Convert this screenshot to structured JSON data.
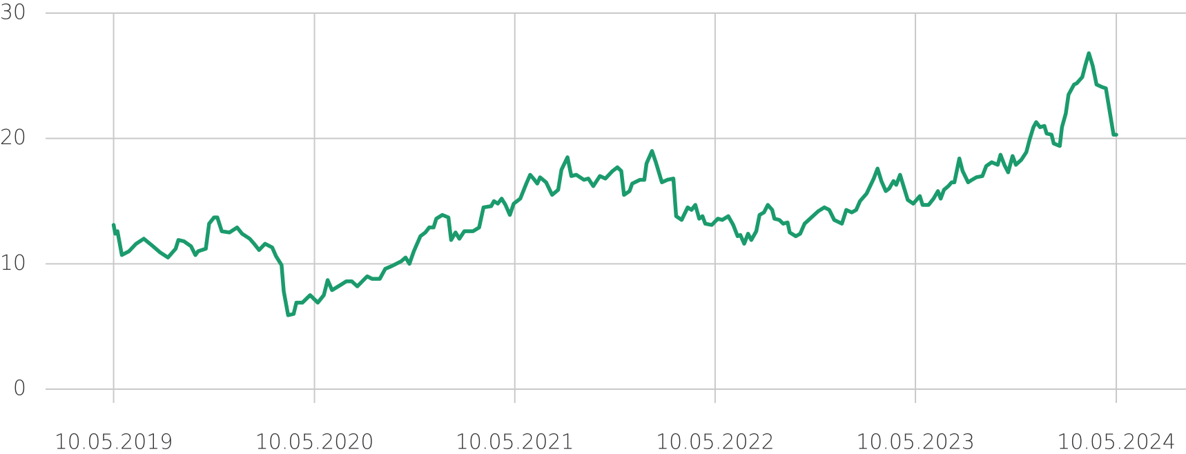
{
  "chart_data": {
    "type": "line",
    "x": [
      "2019-05-10",
      "2019-05-13",
      "2019-05-17",
      "2019-05-25",
      "2019-06-07",
      "2019-06-20",
      "2019-07-04",
      "2019-07-18",
      "2019-08-03",
      "2019-08-17",
      "2019-08-31",
      "2019-09-05",
      "2019-09-15",
      "2019-09-28",
      "2019-10-06",
      "2019-10-11",
      "2019-10-25",
      "2019-10-31",
      "2019-11-09",
      "2019-11-15",
      "2019-11-23",
      "2019-12-07",
      "2019-12-21",
      "2019-12-30",
      "2020-01-13",
      "2020-01-21",
      "2020-01-30",
      "2020-02-10",
      "2020-02-23",
      "2020-03-01",
      "2020-03-11",
      "2020-03-15",
      "2020-03-23",
      "2020-04-02",
      "2020-04-07",
      "2020-04-18",
      "2020-05-02",
      "2020-05-16",
      "2020-05-27",
      "2020-06-03",
      "2020-06-11",
      "2020-06-26",
      "2020-07-07",
      "2020-07-17",
      "2020-07-27",
      "2020-08-14",
      "2020-08-23",
      "2020-09-06",
      "2020-09-16",
      "2020-09-27",
      "2020-10-15",
      "2020-10-23",
      "2020-10-30",
      "2020-11-07",
      "2020-11-19",
      "2020-11-28",
      "2020-12-05",
      "2020-12-13",
      "2020-12-18",
      "2020-12-29",
      "2021-01-09",
      "2021-01-14",
      "2021-01-22",
      "2021-01-29",
      "2021-02-07",
      "2021-02-23",
      "2021-03-06",
      "2021-03-14",
      "2021-03-28",
      "2021-04-02",
      "2021-04-09",
      "2021-04-16",
      "2021-04-23",
      "2021-05-01",
      "2021-05-08",
      "2021-05-20",
      "2021-05-31",
      "2021-06-07",
      "2021-06-13",
      "2021-06-20",
      "2021-06-25",
      "2021-07-06",
      "2021-07-17",
      "2021-07-28",
      "2021-08-03",
      "2021-08-14",
      "2021-08-21",
      "2021-08-30",
      "2021-09-13",
      "2021-09-21",
      "2021-09-30",
      "2021-10-12",
      "2021-10-22",
      "2021-11-04",
      "2021-11-13",
      "2021-11-20",
      "2021-11-25",
      "2021-12-05",
      "2021-12-10",
      "2021-12-24",
      "2022-01-01",
      "2022-01-05",
      "2022-01-15",
      "2022-01-22",
      "2022-02-02",
      "2022-02-12",
      "2022-02-23",
      "2022-02-28",
      "2022-03-10",
      "2022-03-21",
      "2022-03-28",
      "2022-04-04",
      "2022-04-11",
      "2022-04-17",
      "2022-04-22",
      "2022-05-04",
      "2022-05-15",
      "2022-05-23",
      "2022-06-03",
      "2022-06-12",
      "2022-06-20",
      "2022-06-25",
      "2022-07-02",
      "2022-07-09",
      "2022-07-15",
      "2022-07-24",
      "2022-07-30",
      "2022-08-07",
      "2022-08-14",
      "2022-08-22",
      "2022-08-26",
      "2022-09-04",
      "2022-09-11",
      "2022-09-19",
      "2022-09-23",
      "2022-10-04",
      "2022-10-12",
      "2022-10-20",
      "2022-10-30",
      "2022-11-14",
      "2022-11-25",
      "2022-12-04",
      "2022-12-13",
      "2022-12-27",
      "2023-01-04",
      "2023-01-14",
      "2023-01-22",
      "2023-01-29",
      "2023-02-10",
      "2023-02-23",
      "2023-03-02",
      "2023-03-09",
      "2023-03-17",
      "2023-03-23",
      "2023-03-31",
      "2023-04-05",
      "2023-04-12",
      "2023-04-19",
      "2023-04-26",
      "2023-05-06",
      "2023-05-18",
      "2023-05-23",
      "2023-06-03",
      "2023-06-12",
      "2023-06-20",
      "2023-06-25",
      "2023-07-01",
      "2023-07-09",
      "2023-07-15",
      "2023-07-20",
      "2023-07-29",
      "2023-08-04",
      "2023-08-14",
      "2023-08-21",
      "2023-08-29",
      "2023-09-09",
      "2023-09-16",
      "2023-09-26",
      "2023-10-07",
      "2023-10-12",
      "2023-10-19",
      "2023-10-26",
      "2023-11-03",
      "2023-11-09",
      "2023-11-19",
      "2023-11-28",
      "2023-12-04",
      "2023-12-11",
      "2023-12-16",
      "2023-12-23",
      "2023-12-31",
      "2024-01-04",
      "2024-01-13",
      "2024-01-17",
      "2024-01-28",
      "2024-02-01",
      "2024-02-08",
      "2024-02-13",
      "2024-02-23",
      "2024-02-28",
      "2024-03-09",
      "2024-03-15",
      "2024-03-21",
      "2024-03-28",
      "2024-04-04",
      "2024-04-14",
      "2024-04-21",
      "2024-05-05",
      "2024-05-10"
    ],
    "series": [
      {
        "color": "#1b9b6d",
        "values": [
          13.1,
          12.4,
          12.6,
          10.7,
          11.0,
          11.6,
          12.0,
          11.5,
          10.9,
          10.5,
          11.2,
          11.9,
          11.8,
          11.4,
          10.7,
          11.0,
          11.2,
          13.2,
          13.7,
          13.7,
          12.6,
          12.5,
          12.9,
          12.4,
          12.0,
          11.6,
          11.1,
          11.6,
          11.3,
          10.6,
          9.9,
          7.8,
          5.9,
          6.0,
          6.9,
          6.9,
          7.5,
          6.9,
          7.5,
          8.7,
          7.9,
          8.3,
          8.6,
          8.6,
          8.2,
          9.0,
          8.8,
          8.8,
          9.6,
          9.8,
          10.2,
          10.5,
          10.0,
          11.0,
          12.2,
          12.5,
          12.9,
          12.9,
          13.6,
          13.9,
          13.7,
          11.9,
          12.5,
          12.0,
          12.6,
          12.6,
          12.9,
          14.5,
          14.6,
          15.0,
          14.8,
          15.2,
          14.7,
          13.9,
          14.8,
          15.2,
          16.4,
          17.1,
          16.8,
          16.4,
          16.9,
          16.5,
          15.5,
          15.9,
          17.5,
          18.5,
          17.0,
          17.1,
          16.7,
          16.8,
          16.2,
          17.0,
          16.8,
          17.4,
          17.7,
          17.4,
          15.5,
          15.8,
          16.4,
          16.7,
          16.7,
          18.0,
          19.0,
          18.1,
          16.5,
          16.7,
          16.8,
          13.8,
          13.5,
          14.5,
          14.3,
          14.7,
          13.6,
          13.8,
          13.2,
          13.1,
          13.6,
          13.5,
          13.8,
          13.1,
          12.2,
          12.3,
          11.6,
          12.4,
          11.9,
          12.6,
          13.9,
          14.1,
          14.7,
          14.3,
          13.6,
          13.5,
          13.2,
          13.3,
          12.5,
          12.2,
          12.4,
          13.2,
          13.6,
          14.2,
          14.5,
          14.3,
          13.5,
          13.2,
          14.3,
          14.1,
          14.3,
          15.0,
          15.6,
          16.8,
          17.6,
          16.6,
          15.8,
          16.0,
          16.6,
          16.3,
          17.1,
          16.1,
          15.1,
          14.8,
          15.4,
          14.7,
          14.7,
          15.2,
          15.8,
          15.2,
          15.9,
          16.2,
          16.5,
          16.5,
          18.4,
          17.4,
          16.5,
          16.7,
          16.9,
          17.0,
          17.8,
          18.1,
          17.9,
          18.7,
          17.9,
          17.3,
          18.6,
          17.9,
          18.3,
          18.9,
          19.9,
          20.9,
          21.3,
          20.9,
          21.0,
          20.4,
          20.3,
          19.6,
          19.4,
          20.9,
          22.0,
          23.5,
          24.3,
          24.4,
          24.9,
          25.9,
          26.8,
          25.8,
          24.3,
          24.1,
          24.0,
          20.3,
          20.3
        ]
      }
    ],
    "xlim": [
      "2019-01-06",
      "2024-09-14"
    ],
    "xticks": [
      {
        "value": "2019-05-10",
        "label": "10.05.2019"
      },
      {
        "value": "2020-05-10",
        "label": "10.05.2020"
      },
      {
        "value": "2021-05-10",
        "label": "10.05.2021"
      },
      {
        "value": "2022-05-10",
        "label": "10.05.2022"
      },
      {
        "value": "2023-05-10",
        "label": "10.05.2023"
      },
      {
        "value": "2024-05-10",
        "label": "10.05.2024"
      }
    ],
    "ylim": [
      0,
      30
    ],
    "yticks": [
      0,
      10,
      20,
      30
    ],
    "grid": true
  }
}
